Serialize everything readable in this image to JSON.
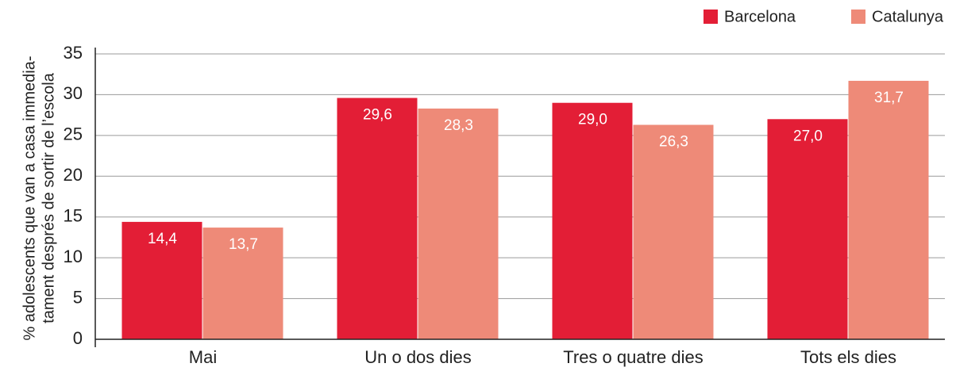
{
  "chart_data": {
    "type": "bar",
    "y_label": [
      "% adolescents que van a casa immedia-",
      "tament després de sortir de l’escola"
    ],
    "categories": [
      "Mai",
      "Un o dos dies",
      "Tres o quatre dies",
      "Tots els dies"
    ],
    "series": [
      {
        "name": "Barcelona",
        "color": "#e31e36",
        "values": [
          14.4,
          29.6,
          29.0,
          27.0
        ],
        "value_labels": [
          "14,4",
          "29,6",
          "29,0",
          "27,0"
        ]
      },
      {
        "name": "Catalunya",
        "color": "#ee8a78",
        "values": [
          13.7,
          28.3,
          26.3,
          31.7
        ],
        "value_labels": [
          "13,7",
          "28,3",
          "26,3",
          "31,7"
        ]
      }
    ],
    "ylim": [
      0,
      35
    ],
    "yticks": [
      0,
      5,
      10,
      15,
      20,
      25,
      30,
      35
    ],
    "grid": true,
    "legend": "top-right"
  }
}
